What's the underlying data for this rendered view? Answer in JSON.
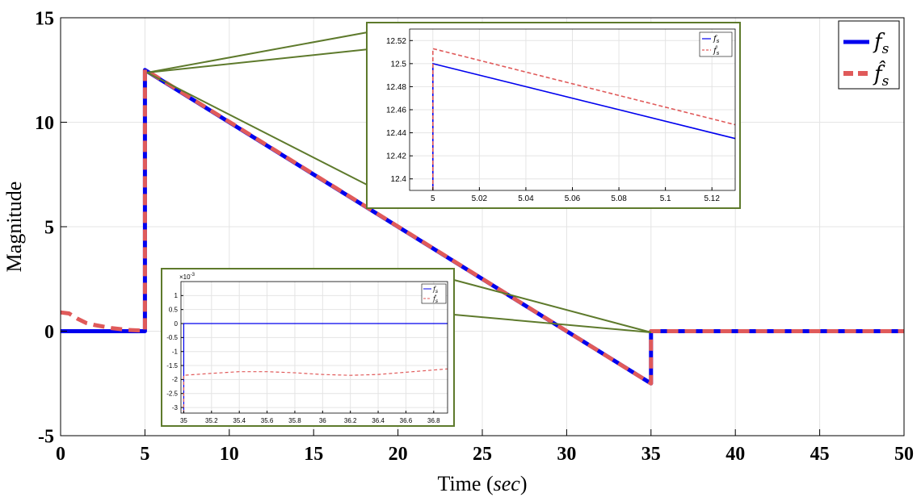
{
  "chart_data": [
    {
      "type": "line",
      "xlabel": "Time",
      "xlabel_unit": "sec",
      "ylabel": "Magnitude",
      "xlim": [
        0,
        50
      ],
      "ylim": [
        -5,
        15
      ],
      "xticks": [
        "0",
        "5",
        "10",
        "15",
        "20",
        "25",
        "30",
        "35",
        "40",
        "45",
        "50"
      ],
      "yticks": [
        "-5",
        "0",
        "5",
        "10",
        "15"
      ],
      "grid": true,
      "legend": "top-right",
      "series": [
        {
          "name": "f_s",
          "color": "#0000ee",
          "style": "solid",
          "points": [
            [
              0,
              0
            ],
            [
              5,
              0
            ],
            [
              5,
              12.5
            ],
            [
              35,
              -2.5
            ],
            [
              35,
              0
            ],
            [
              50,
              0
            ]
          ]
        },
        {
          "name": "f̂_s",
          "color": "#e05a5a",
          "style": "dashed",
          "points": [
            [
              0,
              0.9
            ],
            [
              0.5,
              0.85
            ],
            [
              1,
              0.6
            ],
            [
              1.5,
              0.4
            ],
            [
              2,
              0.3
            ],
            [
              3,
              0.15
            ],
            [
              4,
              0.06
            ],
            [
              5,
              0.02
            ],
            [
              5,
              12.52
            ],
            [
              35,
              -2.5
            ],
            [
              35,
              0
            ],
            [
              50,
              0
            ]
          ]
        }
      ]
    },
    {
      "type": "line",
      "inset": "top-zoom",
      "xlim": [
        4.99,
        5.13
      ],
      "ylim": [
        12.39,
        12.53
      ],
      "xticks": [
        "5",
        "5.02",
        "5.04",
        "5.06",
        "5.08",
        "5.1",
        "5.12"
      ],
      "yticks": [
        "12.4",
        "12.42",
        "12.44",
        "12.46",
        "12.48",
        "12.5",
        "12.52"
      ],
      "legend": "top-right",
      "series": [
        {
          "name": "f_s",
          "color": "#0000ee",
          "style": "solid",
          "points": [
            [
              5,
              12.39
            ],
            [
              5,
              12.5
            ],
            [
              5.13,
              12.435
            ]
          ]
        },
        {
          "name": "f̂_s",
          "color": "#e05a5a",
          "style": "dashed",
          "points": [
            [
              5,
              12.39
            ],
            [
              5,
              12.513
            ],
            [
              5.13,
              12.447
            ]
          ]
        }
      ]
    },
    {
      "type": "line",
      "inset": "bottom-zoom",
      "exponent_label": "×10",
      "exponent_power": "-3",
      "xlim": [
        34.98,
        36.9
      ],
      "ylim": [
        -3.2,
        1.5
      ],
      "xticks": [
        "35",
        "35.2",
        "35.4",
        "35.6",
        "35.8",
        "36",
        "36.2",
        "36.4",
        "36.6",
        "36.8"
      ],
      "yticks": [
        "-3",
        "-2.5",
        "-2",
        "-1.5",
        "-1",
        "-0.5",
        "0",
        "0.5",
        "1"
      ],
      "legend": "top-right",
      "series": [
        {
          "name": "f_s",
          "color": "#0000ee",
          "style": "solid",
          "points": [
            [
              35,
              -3.2
            ],
            [
              35,
              0
            ],
            [
              36.9,
              0
            ]
          ]
        },
        {
          "name": "f̂_s",
          "color": "#e05a5a",
          "style": "dashed",
          "points": [
            [
              35,
              -3.2
            ],
            [
              35,
              -1.85
            ],
            [
              35.2,
              -1.78
            ],
            [
              35.4,
              -1.72
            ],
            [
              35.6,
              -1.72
            ],
            [
              35.8,
              -1.76
            ],
            [
              36,
              -1.82
            ],
            [
              36.2,
              -1.85
            ],
            [
              36.4,
              -1.82
            ],
            [
              36.6,
              -1.74
            ],
            [
              36.8,
              -1.66
            ],
            [
              36.9,
              -1.62
            ]
          ]
        }
      ]
    }
  ]
}
